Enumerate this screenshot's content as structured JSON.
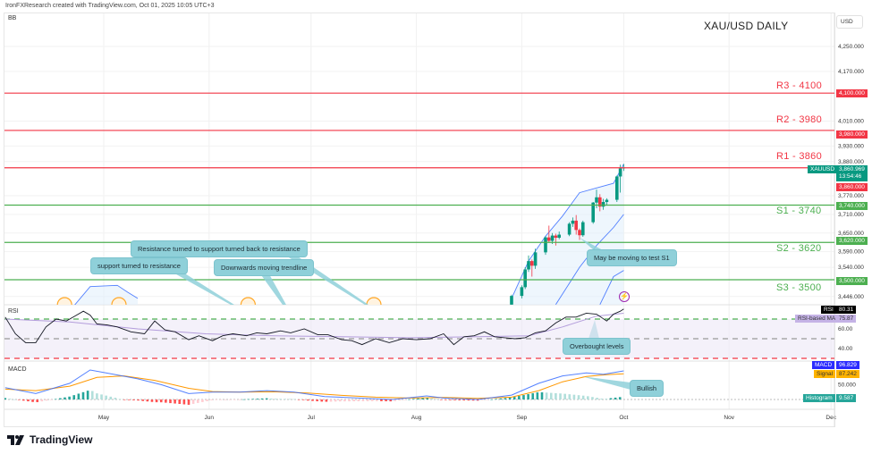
{
  "header": {
    "credit": "IronFXResearch created with TradingView.com, Oct 01, 2025 10:05 UTC+3",
    "indicator": "BB"
  },
  "title": "XAU/USD DAILY",
  "currency_button": "USD",
  "brand": "TradingView",
  "lightning_icon": "lightning-icon",
  "annotations": {
    "resistance_support": "Resistance turned to support turned back to resistance",
    "support_resistance": "support turned to resistance",
    "trendline": "Downwards moving trendline",
    "test_s1": "May be moving to test S1",
    "overbought": "Overbought levels",
    "bullish": "Bullish"
  },
  "colors": {
    "up": "#089981",
    "down": "#f23645",
    "resistance": "#f23645",
    "support": "#4caf50",
    "bb": "#2962ff",
    "rsi": "#131722",
    "rsi_ma": "#b39ddb",
    "macd": "#2962ff",
    "signal": "#ff9800"
  },
  "price_tags": {
    "symbol": "XAUUSD",
    "last": "3,860.969",
    "countdown": "13:54:46",
    "r3": "4,100.000",
    "r2": "3,980.000",
    "r1": "3,860.000",
    "s1": "3,740.000",
    "s2": "3,620.000",
    "s3": "3,500.000"
  },
  "indicator_tags": {
    "rsi_label": "RSI",
    "rsi_value": "80.31",
    "rsi_ma_label": "RSI-based MA",
    "rsi_ma_value": "75.87",
    "macd_label": "MACD",
    "macd_value": "96.829",
    "signal_label": "Signal",
    "signal_value": "87.242",
    "hist_label": "Histogram",
    "hist_value": "9.587",
    "rsi_panel": "RSI",
    "macd_panel": "MACD"
  },
  "chart_data": {
    "type": "candlestick",
    "title": "XAU/USD DAILY",
    "yaxis": {
      "unit": "USD",
      "range": [
        3420,
        4356
      ],
      "ticks": [
        "4,250.000",
        "4,170.000",
        "4,010.000",
        "3,930.000",
        "3,880.000",
        "3,770.000",
        "3,710.000",
        "3,650.000",
        "3,590.000",
        "3,540.000",
        "3,446.000"
      ],
      "tick_values": [
        4250,
        4170,
        4010,
        3930,
        3880,
        3770,
        3710,
        3650,
        3590,
        3540,
        3446
      ]
    },
    "xaxis": {
      "ticks": [
        "May",
        "Jun",
        "Jul",
        "Aug",
        "Sep",
        "Oct",
        "Nov",
        "Dec"
      ],
      "tick_days": [
        30,
        61,
        91,
        122,
        153,
        183,
        214,
        244
      ],
      "day_origin": "Apr 1, 2025"
    },
    "levels": [
      {
        "label": "R3 - 4100",
        "value": 4100,
        "kind": "resistance"
      },
      {
        "label": "R2 - 3980",
        "value": 3980,
        "kind": "resistance"
      },
      {
        "label": "R1 - 3860",
        "value": 3860,
        "kind": "resistance"
      },
      {
        "label": "S1 - 3740",
        "value": 3740,
        "kind": "support"
      },
      {
        "label": "S2 - 3620",
        "value": 3620,
        "kind": "support"
      },
      {
        "label": "S3 - 3500",
        "value": 3500,
        "kind": "support"
      }
    ],
    "candles": [
      {
        "day": 150,
        "o": 3420,
        "h": 3452,
        "l": 3418,
        "c": 3448
      },
      {
        "day": 153,
        "o": 3448,
        "h": 3482,
        "l": 3440,
        "c": 3476
      },
      {
        "day": 154,
        "o": 3476,
        "h": 3540,
        "l": 3470,
        "c": 3533
      },
      {
        "day": 155,
        "o": 3533,
        "h": 3578,
        "l": 3525,
        "c": 3560
      },
      {
        "day": 156,
        "o": 3560,
        "h": 3565,
        "l": 3510,
        "c": 3545
      },
      {
        "day": 157,
        "o": 3545,
        "h": 3600,
        "l": 3535,
        "c": 3588
      },
      {
        "day": 160,
        "o": 3588,
        "h": 3640,
        "l": 3580,
        "c": 3636
      },
      {
        "day": 161,
        "o": 3636,
        "h": 3674,
        "l": 3620,
        "c": 3625
      },
      {
        "day": 162,
        "o": 3625,
        "h": 3650,
        "l": 3615,
        "c": 3642
      },
      {
        "day": 163,
        "o": 3642,
        "h": 3648,
        "l": 3610,
        "c": 3635
      },
      {
        "day": 164,
        "o": 3635,
        "h": 3655,
        "l": 3630,
        "c": 3645
      },
      {
        "day": 167,
        "o": 3645,
        "h": 3685,
        "l": 3640,
        "c": 3680
      },
      {
        "day": 168,
        "o": 3680,
        "h": 3700,
        "l": 3670,
        "c": 3690
      },
      {
        "day": 169,
        "o": 3690,
        "h": 3708,
        "l": 3645,
        "c": 3660
      },
      {
        "day": 170,
        "o": 3660,
        "h": 3665,
        "l": 3628,
        "c": 3643
      },
      {
        "day": 171,
        "o": 3643,
        "h": 3690,
        "l": 3638,
        "c": 3685
      },
      {
        "day": 174,
        "o": 3685,
        "h": 3750,
        "l": 3680,
        "c": 3748
      },
      {
        "day": 175,
        "o": 3748,
        "h": 3790,
        "l": 3730,
        "c": 3765
      },
      {
        "day": 176,
        "o": 3765,
        "h": 3775,
        "l": 3720,
        "c": 3735
      },
      {
        "day": 177,
        "o": 3735,
        "h": 3760,
        "l": 3725,
        "c": 3750
      },
      {
        "day": 178,
        "o": 3750,
        "h": 3762,
        "l": 3738,
        "c": 3757
      },
      {
        "day": 181,
        "o": 3757,
        "h": 3835,
        "l": 3750,
        "c": 3832
      },
      {
        "day": 182,
        "o": 3832,
        "h": 3870,
        "l": 3780,
        "c": 3858
      },
      {
        "day": 183,
        "o": 3858,
        "h": 3872,
        "l": 3850,
        "c": 3861
      }
    ],
    "bollinger": {
      "upper": [
        [
          20,
          3400
        ],
        [
          26,
          3478
        ],
        [
          34,
          3482
        ],
        [
          37,
          3460
        ],
        [
          40,
          3440
        ],
        [
          150,
          3440
        ],
        [
          155,
          3560
        ],
        [
          160,
          3640
        ],
        [
          165,
          3705
        ],
        [
          170,
          3780
        ],
        [
          175,
          3795
        ],
        [
          180,
          3810
        ],
        [
          183,
          3872
        ]
      ],
      "middle": [
        [
          163,
          3420
        ],
        [
          170,
          3540
        ],
        [
          175,
          3610
        ],
        [
          180,
          3668
        ],
        [
          183,
          3710
        ]
      ],
      "lower": [
        [
          176,
          3420
        ],
        [
          180,
          3510
        ],
        [
          183,
          3530
        ]
      ]
    },
    "rsi": {
      "levels": {
        "overbought": 70,
        "middle": 50,
        "oversold": 30
      },
      "ticks": [
        60,
        40
      ],
      "values": [
        [
          1,
          72
        ],
        [
          4,
          55
        ],
        [
          7,
          46
        ],
        [
          10,
          46
        ],
        [
          13,
          62
        ],
        [
          16,
          70
        ],
        [
          19,
          68
        ],
        [
          22,
          74
        ],
        [
          24,
          78
        ],
        [
          26,
          74
        ],
        [
          28,
          65
        ],
        [
          31,
          64
        ],
        [
          34,
          62
        ],
        [
          38,
          57
        ],
        [
          42,
          55
        ],
        [
          45,
          68
        ],
        [
          48,
          59
        ],
        [
          51,
          57
        ],
        [
          55,
          49
        ],
        [
          58,
          53
        ],
        [
          62,
          48
        ],
        [
          65,
          53
        ],
        [
          68,
          55
        ],
        [
          72,
          53
        ],
        [
          75,
          56
        ],
        [
          78,
          55
        ],
        [
          82,
          58
        ],
        [
          85,
          56
        ],
        [
          89,
          60
        ],
        [
          93,
          54
        ],
        [
          96,
          54
        ],
        [
          100,
          49
        ],
        [
          103,
          48
        ],
        [
          106,
          44
        ],
        [
          110,
          50
        ],
        [
          114,
          46
        ],
        [
          118,
          50
        ],
        [
          122,
          49
        ],
        [
          126,
          50
        ],
        [
          130,
          55
        ],
        [
          133,
          44
        ],
        [
          136,
          52
        ],
        [
          139,
          53
        ],
        [
          142,
          57
        ],
        [
          145,
          52
        ],
        [
          148,
          51
        ],
        [
          151,
          50
        ],
        [
          154,
          51
        ],
        [
          157,
          56
        ],
        [
          160,
          58
        ],
        [
          163,
          66
        ],
        [
          166,
          72
        ],
        [
          169,
          72
        ],
        [
          172,
          76
        ],
        [
          175,
          75
        ],
        [
          178,
          68
        ],
        [
          180,
          75
        ],
        [
          182,
          78
        ],
        [
          183,
          80.31
        ]
      ],
      "ma": [
        [
          1,
          70
        ],
        [
          20,
          67
        ],
        [
          40,
          60
        ],
        [
          60,
          55
        ],
        [
          80,
          53
        ],
        [
          100,
          52
        ],
        [
          120,
          51
        ],
        [
          140,
          52
        ],
        [
          155,
          53
        ],
        [
          165,
          62
        ],
        [
          175,
          73
        ],
        [
          183,
          75.87
        ]
      ]
    },
    "macd": {
      "ticks": [
        50
      ],
      "macd": [
        [
          1,
          40
        ],
        [
          10,
          20
        ],
        [
          20,
          55
        ],
        [
          26,
          100
        ],
        [
          33,
          85
        ],
        [
          40,
          70
        ],
        [
          47,
          50
        ],
        [
          55,
          20
        ],
        [
          62,
          25
        ],
        [
          70,
          25
        ],
        [
          78,
          30
        ],
        [
          86,
          25
        ],
        [
          95,
          10
        ],
        [
          105,
          5
        ],
        [
          115,
          0
        ],
        [
          125,
          12
        ],
        [
          130,
          5
        ],
        [
          140,
          0
        ],
        [
          150,
          15
        ],
        [
          158,
          55
        ],
        [
          165,
          80
        ],
        [
          172,
          90
        ],
        [
          177,
          85
        ],
        [
          183,
          96.83
        ]
      ],
      "signal": [
        [
          1,
          35
        ],
        [
          10,
          30
        ],
        [
          20,
          45
        ],
        [
          28,
          75
        ],
        [
          36,
          80
        ],
        [
          45,
          65
        ],
        [
          55,
          38
        ],
        [
          62,
          27
        ],
        [
          70,
          25
        ],
        [
          80,
          26
        ],
        [
          90,
          22
        ],
        [
          100,
          14
        ],
        [
          110,
          8
        ],
        [
          120,
          5
        ],
        [
          130,
          7
        ],
        [
          140,
          4
        ],
        [
          150,
          8
        ],
        [
          158,
          30
        ],
        [
          165,
          60
        ],
        [
          172,
          78
        ],
        [
          178,
          84
        ],
        [
          183,
          87.24
        ]
      ]
    }
  }
}
